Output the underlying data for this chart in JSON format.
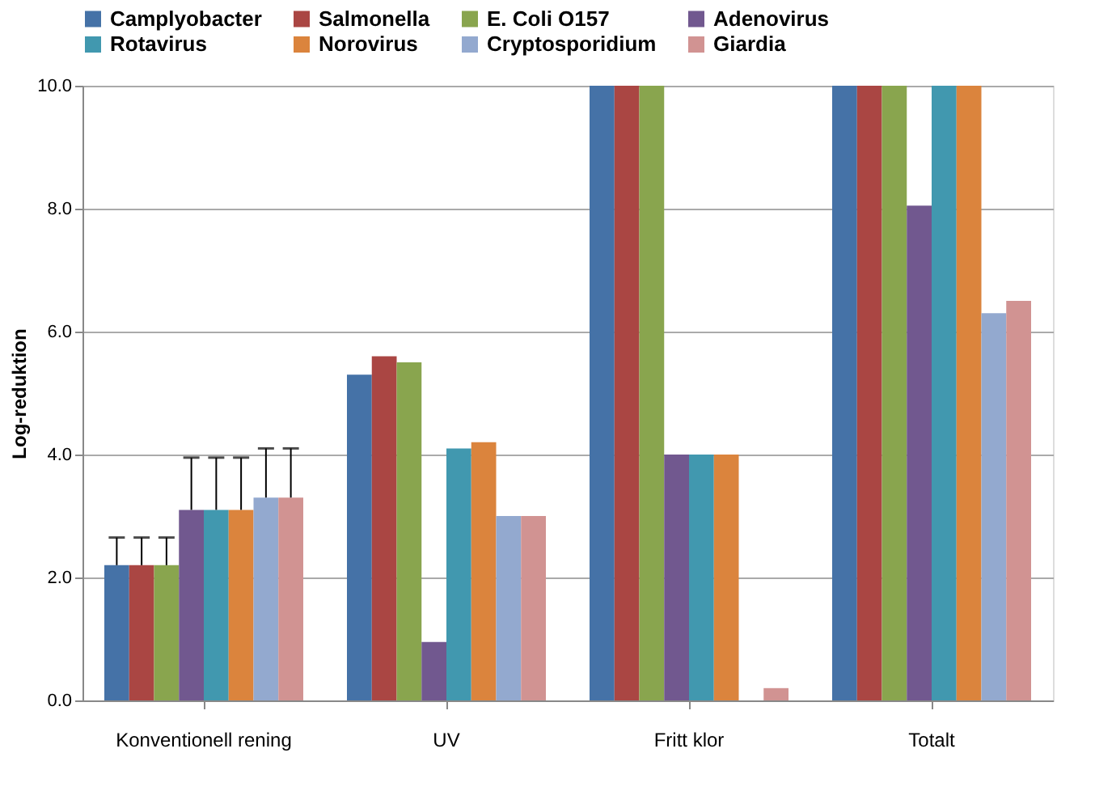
{
  "chart_data": {
    "type": "bar",
    "ylabel": "Log-reduktion",
    "categories": [
      "Konventionell rening",
      "UV",
      "Fritt klor",
      "Totalt"
    ],
    "series": [
      {
        "name": "Camplyobacter",
        "color": "#4572a7",
        "values": [
          2.2,
          5.3,
          10,
          10
        ],
        "errors": [
          [
            2.2,
            2.65
          ],
          null,
          null,
          null
        ]
      },
      {
        "name": "Salmonella",
        "color": "#aa4643",
        "values": [
          2.2,
          5.6,
          10,
          10
        ],
        "errors": [
          [
            2.2,
            2.65
          ],
          null,
          null,
          null
        ]
      },
      {
        "name": "E. Coli O157",
        "color": "#89a54e",
        "values": [
          2.2,
          5.5,
          10,
          10
        ],
        "errors": [
          [
            2.2,
            2.65
          ],
          null,
          null,
          null
        ]
      },
      {
        "name": "Adenovirus",
        "color": "#71588f",
        "values": [
          3.1,
          0.95,
          4.0,
          8.05
        ],
        "errors": [
          [
            3.1,
            3.95
          ],
          null,
          null,
          null
        ]
      },
      {
        "name": "Rotavirus",
        "color": "#4198af",
        "values": [
          3.1,
          4.1,
          4.0,
          10
        ],
        "errors": [
          [
            3.1,
            3.95
          ],
          null,
          null,
          null
        ]
      },
      {
        "name": "Norovirus",
        "color": "#db843d",
        "values": [
          3.1,
          4.2,
          4.0,
          10
        ],
        "errors": [
          [
            3.1,
            3.95
          ],
          null,
          null,
          null
        ]
      },
      {
        "name": "Cryptosporidium",
        "color": "#93a9cf",
        "values": [
          3.3,
          3.0,
          null,
          6.3
        ],
        "errors": [
          [
            3.3,
            4.1
          ],
          null,
          null,
          null
        ]
      },
      {
        "name": "Giardia",
        "color": "#d19392",
        "values": [
          3.3,
          3.0,
          0.2,
          6.5
        ],
        "errors": [
          [
            3.3,
            4.1
          ],
          null,
          null,
          null
        ]
      }
    ],
    "ylim": [
      0,
      10
    ],
    "yticks": [
      {
        "value": 0,
        "label": "0.0"
      },
      {
        "value": 2,
        "label": "2.0"
      },
      {
        "value": 4,
        "label": "4.0"
      },
      {
        "value": 6,
        "label": "6.0"
      },
      {
        "value": 8,
        "label": "8.0"
      },
      {
        "value": 10,
        "label": "10.0"
      }
    ],
    "grid": "y",
    "legend": "top"
  }
}
